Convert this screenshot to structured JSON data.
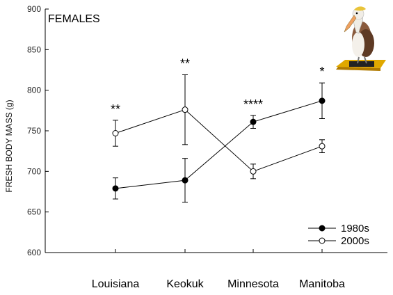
{
  "chart_data": {
    "type": "line",
    "title": "FEMALES",
    "xlabel": "",
    "ylabel": "FRESH BODY MASS (g)",
    "categories": [
      "Louisiana",
      "Keokuk",
      "Minnesota",
      "Manitoba"
    ],
    "ylim": [
      600,
      900
    ],
    "yticks": [
      600,
      650,
      700,
      750,
      800,
      850,
      900
    ],
    "significance": [
      "**",
      "**",
      "****",
      "*"
    ],
    "legend_position": "bottom-right",
    "grid": false,
    "series": [
      {
        "name": "1980s",
        "marker": "filled-circle",
        "color": "#000000",
        "values": [
          679,
          689,
          761,
          787
        ],
        "errors": [
          13,
          27,
          8,
          22
        ]
      },
      {
        "name": "2000s",
        "marker": "open-circle",
        "color": "#000000",
        "values": [
          747,
          776,
          700,
          731
        ],
        "errors": [
          16,
          43,
          9,
          8
        ]
      }
    ]
  }
}
